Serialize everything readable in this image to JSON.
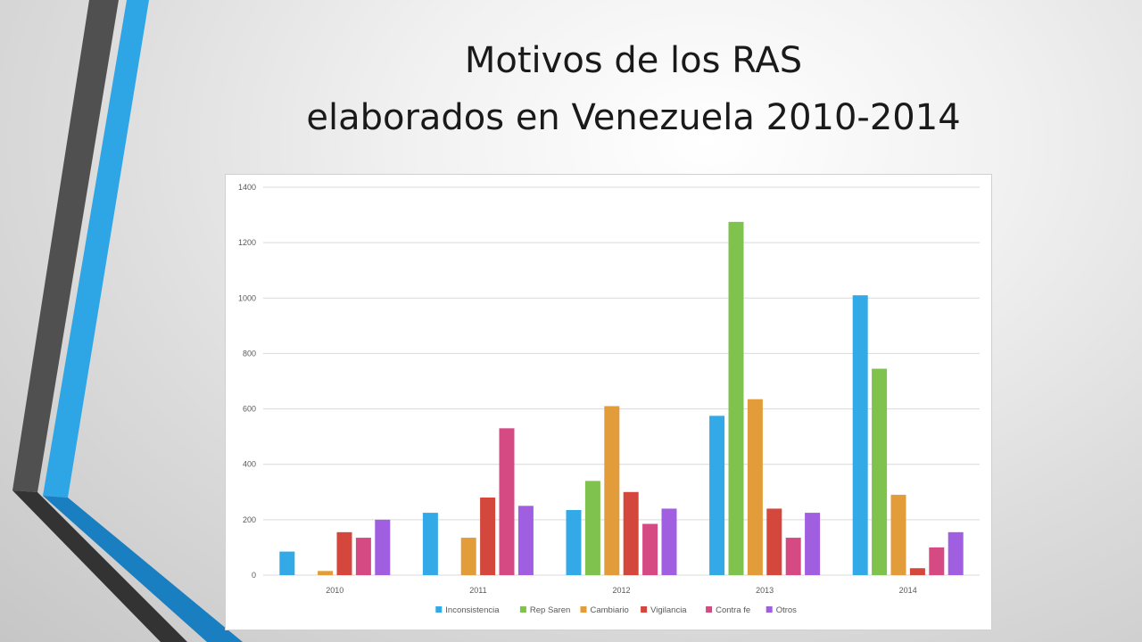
{
  "slide": {
    "title_line1": "Motivos de los RAS",
    "title_line2": "elaborados en Venezuela 2010-2014"
  },
  "colors": {
    "stripe_gray": "#4d4d4d",
    "stripe_blue": "#2ea6e6",
    "stripe_blue_dark": "#1a7fc1",
    "stripe_gray_dark": "#2e2e2e"
  },
  "chart_data": {
    "type": "bar",
    "categories": [
      "2010",
      "2011",
      "2012",
      "2013",
      "2014"
    ],
    "yticks": [
      "0",
      "200",
      "400",
      "600",
      "800",
      "1000",
      "1200",
      "1400"
    ],
    "ylim": [
      0,
      1400
    ],
    "grid": true,
    "legend_position": "bottom",
    "series": [
      {
        "name": "Inconsistencia",
        "color": "#33a9e8",
        "values": [
          85,
          225,
          235,
          575,
          1010
        ]
      },
      {
        "name": "Rep Saren",
        "color": "#80c24e",
        "values": [
          0,
          0,
          340,
          1275,
          745
        ]
      },
      {
        "name": "Cambiario",
        "color": "#e39c3a",
        "values": [
          15,
          135,
          610,
          635,
          290
        ]
      },
      {
        "name": "Vigilancia",
        "color": "#d4473c",
        "values": [
          155,
          280,
          300,
          240,
          25
        ]
      },
      {
        "name": "Contra fe",
        "color": "#d64a84",
        "values": [
          135,
          530,
          185,
          135,
          100
        ]
      },
      {
        "name": "Otros",
        "color": "#a05ee0",
        "values": [
          200,
          250,
          240,
          225,
          155
        ]
      }
    ]
  }
}
